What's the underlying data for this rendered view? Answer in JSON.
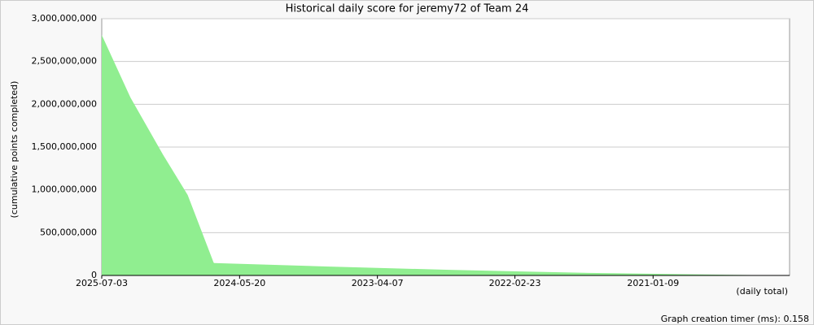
{
  "chart_data": {
    "type": "area",
    "title": "Historical daily score for jeremy72 of Team 24",
    "y_label": "(cumulative points completed)",
    "x_label": "(daily total)",
    "footer": "Graph creation timer (ms): 0.158",
    "color": "#90ee90",
    "x": [
      "2025-07-03",
      "2025-04-09",
      "2025-01-02",
      "2024-10-21",
      "2024-08-05",
      "2024-08-03",
      "2023-09-05",
      "2022-09-05",
      "2021-07-20",
      "2020-02-24"
    ],
    "values": [
      2810000000,
      2080000000,
      1410000000,
      940000000,
      150000000,
      145000000,
      105000000,
      65000000,
      30000000,
      3000000
    ],
    "xlim": [
      "2025-07-03",
      "2019-12-01"
    ],
    "xticks": [
      "2025-07-03",
      "2024-05-20",
      "2023-04-07",
      "2022-02-23",
      "2021-01-09"
    ],
    "ylim": [
      0,
      3000000000
    ],
    "yticks": [
      0,
      {
        "value": 500000000,
        "label": "500,000,000"
      },
      {
        "value": 1000000000,
        "label": "1,000,000,000"
      },
      {
        "value": 1500000000,
        "label": "1,500,000,000"
      },
      {
        "value": 2000000000,
        "label": "2,000,000,000"
      },
      {
        "value": 2500000000,
        "label": "2,500,000,000"
      },
      {
        "value": 3000000000,
        "label": "3,000,000,000"
      }
    ],
    "grid": true
  }
}
